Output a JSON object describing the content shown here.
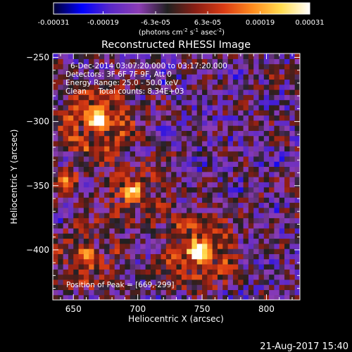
{
  "chart_data": {
    "type": "heatmap",
    "title": "Reconstructed RHESSI Image",
    "xlabel": "Heliocentric X (arcsec)",
    "ylabel": "Heliocentric Y (arcsec)",
    "xlim": [
      634,
      826
    ],
    "ylim": [
      -439,
      -247
    ],
    "x_ticks": [
      650,
      700,
      750,
      800
    ],
    "y_ticks": [
      -250,
      -300,
      -350,
      -400
    ],
    "x_tick_labels": [
      "650",
      "700",
      "750",
      "800"
    ],
    "y_tick_labels": [
      "-250",
      "-300",
      "-350",
      "-400"
    ],
    "colorbar": {
      "range": [
        -0.00031,
        0.00031
      ],
      "ticks": [
        -0.00031,
        -0.00019,
        -6.3e-05,
        6.3e-05,
        0.00019,
        0.00031
      ],
      "tick_labels": [
        "-0.00031",
        "-0.00019",
        "-6.3e-05",
        "6.3e-05",
        "0.00019",
        "0.00031"
      ],
      "unit_label_parts": [
        "(photons cm",
        "-2",
        " s",
        "-1",
        " asec",
        "-2",
        ")"
      ],
      "colormap": [
        "#000030",
        "#0000ff",
        "#5a28c8",
        "#8c3cb4",
        "#202020",
        "#8c1e14",
        "#dc3c14",
        "#ff8c1e",
        "#ffdc50",
        "#ffffff"
      ]
    },
    "sources": [
      {
        "x": 669,
        "y": -299,
        "amplitude": 1.0,
        "sigma": 16
      },
      {
        "x": 697,
        "y": -355,
        "amplitude": 0.75,
        "sigma": 14
      },
      {
        "x": 747,
        "y": -401,
        "amplitude": 1.0,
        "sigma": 16
      },
      {
        "x": 660,
        "y": -405,
        "amplitude": 0.6,
        "sigma": 15
      },
      {
        "x": 645,
        "y": -345,
        "amplitude": 0.45,
        "sigma": 10
      }
    ],
    "annotations": [
      "6-Dec-2014 03:07:20.000 to 03:17:20.000",
      "Detectors: 3F 6F 7F 9F, Att 0",
      "Energy Range: 25.0 - 50.0 keV",
      "Clean     Total counts: 8.34E+03"
    ],
    "peak_label": "Position of Peak = [669,-299]"
  },
  "footer": {
    "timestamp": "21-Aug-2017 15:40"
  }
}
